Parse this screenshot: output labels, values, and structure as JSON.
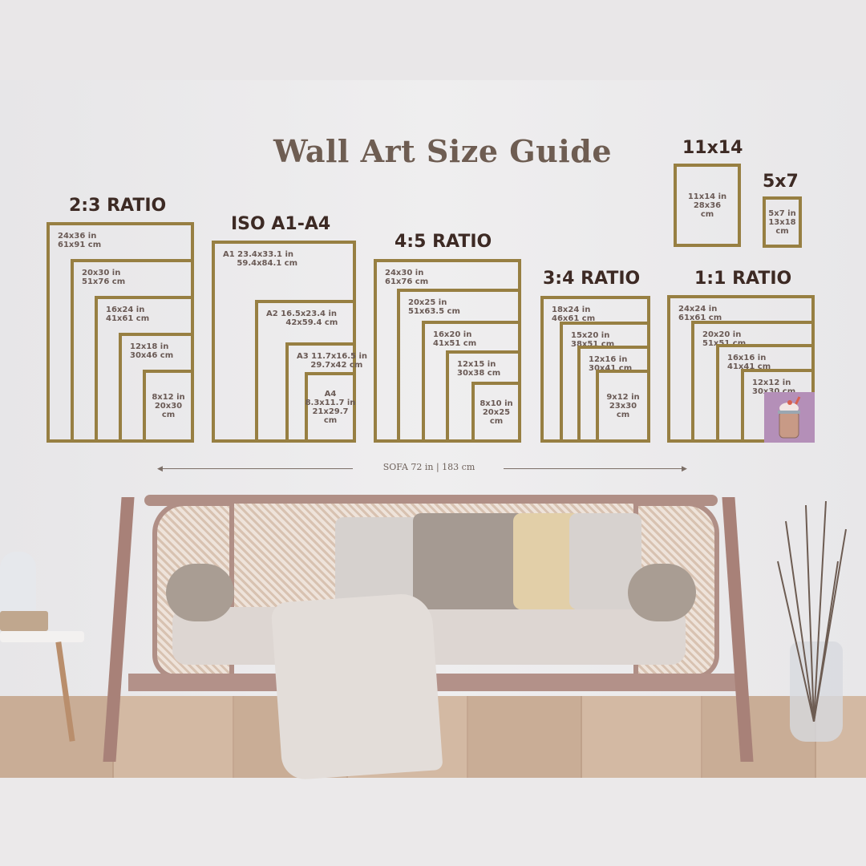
{
  "title": "Wall Art Size Guide",
  "frame_color": "#977f42",
  "groups": [
    {
      "heading": "2:3 RATIO",
      "labels": [
        "24x36 in\n61x91 cm",
        "20x30 in\n51x76 cm",
        "16x24 in\n41x61 cm",
        "12x18 in\n30x46 cm",
        "8x12 in\n20x30\ncm"
      ]
    },
    {
      "heading": "ISO A1-A4",
      "labels": [
        "A1 23.4x33.1 in\n     59.4x84.1 cm",
        "A2 16.5x23.4 in\n       42x59.4 cm",
        "A3 11.7x16.5 in\n     29.7x42 cm",
        "A4\n8.3x11.7 in\n21x29.7\ncm"
      ]
    },
    {
      "heading": "4:5 RATIO",
      "labels": [
        "24x30 in\n61x76 cm",
        "20x25 in\n51x63.5 cm",
        "16x20 in\n41x51 cm",
        "12x15 in\n30x38 cm",
        "8x10 in\n20x25\ncm"
      ]
    },
    {
      "heading": "3:4 RATIO",
      "labels": [
        "18x24 in\n46x61 cm",
        "15x20 in\n38x51 cm",
        "12x16 in\n30x41 cm",
        "9x12 in\n23x30\ncm"
      ]
    },
    {
      "heading": "1:1 RATIO",
      "labels": [
        "24x24 in\n61x61 cm",
        "20x20 in\n51x51 cm",
        "16x16 in\n41x41 cm",
        "12x12 in\n30x30 cm"
      ]
    },
    {
      "heading": "11x14",
      "labels": [
        "11x14 in\n28x36\ncm"
      ]
    },
    {
      "heading": "5x7",
      "labels": [
        "5x7 in\n13x18\ncm"
      ]
    }
  ],
  "sofa_measure": "SOFA 72 in | 183 cm",
  "milkshake_bg": "#b48fb8"
}
